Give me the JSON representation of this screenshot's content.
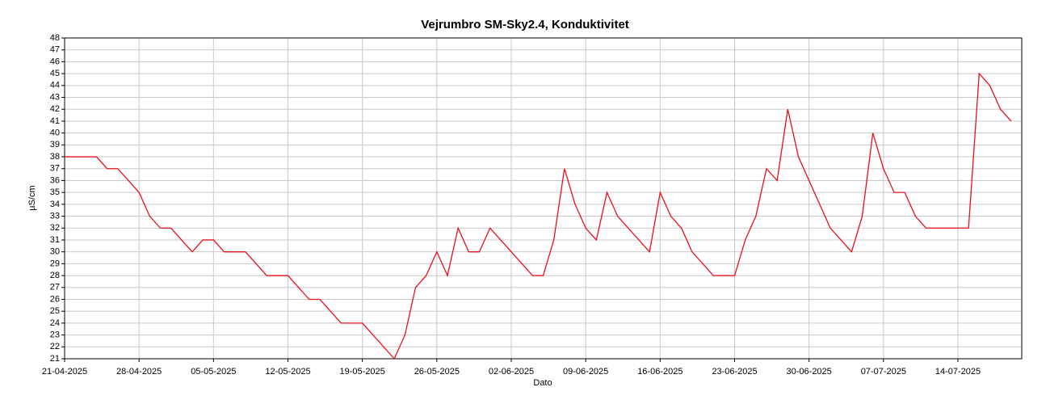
{
  "chart_data": {
    "type": "line",
    "title": "Vejrumbro SM-Sky2.4, Konduktivitet",
    "xlabel": "Dato",
    "ylabel": "µS/cm",
    "color": "#e8101a",
    "grid": true,
    "x": [
      "2025-04-21",
      "2025-04-22",
      "2025-04-23",
      "2025-04-24",
      "2025-04-25",
      "2025-04-26",
      "2025-04-27",
      "2025-04-28",
      "2025-04-29",
      "2025-04-30",
      "2025-05-01",
      "2025-05-02",
      "2025-05-03",
      "2025-05-04",
      "2025-05-05",
      "2025-05-06",
      "2025-05-07",
      "2025-05-08",
      "2025-05-09",
      "2025-05-10",
      "2025-05-11",
      "2025-05-12",
      "2025-05-13",
      "2025-05-14",
      "2025-05-15",
      "2025-05-16",
      "2025-05-17",
      "2025-05-18",
      "2025-05-19",
      "2025-05-20",
      "2025-05-21",
      "2025-05-22",
      "2025-05-23",
      "2025-05-24",
      "2025-05-25",
      "2025-05-26",
      "2025-05-27",
      "2025-05-28",
      "2025-05-29",
      "2025-05-30",
      "2025-05-31",
      "2025-06-01",
      "2025-06-02",
      "2025-06-03",
      "2025-06-04",
      "2025-06-05",
      "2025-06-06",
      "2025-06-07",
      "2025-06-08",
      "2025-06-09",
      "2025-06-10",
      "2025-06-11",
      "2025-06-12",
      "2025-06-13",
      "2025-06-14",
      "2025-06-15",
      "2025-06-16",
      "2025-06-17",
      "2025-06-18",
      "2025-06-19",
      "2025-06-20",
      "2025-06-21",
      "2025-06-22",
      "2025-06-23",
      "2025-06-24",
      "2025-06-25",
      "2025-06-26",
      "2025-06-27",
      "2025-06-28",
      "2025-06-29",
      "2025-06-30",
      "2025-07-01",
      "2025-07-02",
      "2025-07-03",
      "2025-07-04",
      "2025-07-05",
      "2025-07-06",
      "2025-07-07",
      "2025-07-08",
      "2025-07-09",
      "2025-07-10",
      "2025-07-11",
      "2025-07-12",
      "2025-07-13",
      "2025-07-14",
      "2025-07-15",
      "2025-07-16",
      "2025-07-17",
      "2025-07-18",
      "2025-07-19"
    ],
    "values": [
      38,
      38,
      38,
      38,
      37,
      37,
      36,
      35,
      33,
      32,
      32,
      31,
      30,
      31,
      31,
      30,
      30,
      30,
      29,
      28,
      28,
      28,
      27,
      26,
      26,
      25,
      24,
      24,
      24,
      23,
      22,
      21,
      23,
      27,
      28,
      30,
      28,
      32,
      30,
      30,
      32,
      31,
      30,
      29,
      28,
      28,
      31,
      37,
      34,
      32,
      31,
      35,
      33,
      32,
      31,
      30,
      35,
      33,
      32,
      30,
      29,
      28,
      28,
      28,
      31,
      33,
      37,
      36,
      42,
      38,
      36,
      34,
      32,
      31,
      30,
      33,
      40,
      37,
      35,
      35,
      33,
      32,
      32,
      32,
      32,
      32,
      45,
      44,
      42,
      41
    ],
    "xlim": [
      "2025-04-21",
      "2025-07-20"
    ],
    "xticks": [
      {
        "value": "2025-04-21",
        "label": "21-04-2025"
      },
      {
        "value": "2025-04-28",
        "label": "28-04-2025"
      },
      {
        "value": "2025-05-05",
        "label": "05-05-2025"
      },
      {
        "value": "2025-05-12",
        "label": "12-05-2025"
      },
      {
        "value": "2025-05-19",
        "label": "19-05-2025"
      },
      {
        "value": "2025-05-26",
        "label": "26-05-2025"
      },
      {
        "value": "2025-06-02",
        "label": "02-06-2025"
      },
      {
        "value": "2025-06-09",
        "label": "09-06-2025"
      },
      {
        "value": "2025-06-16",
        "label": "16-06-2025"
      },
      {
        "value": "2025-06-23",
        "label": "23-06-2025"
      },
      {
        "value": "2025-06-30",
        "label": "30-06-2025"
      },
      {
        "value": "2025-07-07",
        "label": "07-07-2025"
      },
      {
        "value": "2025-07-14",
        "label": "14-07-2025"
      }
    ],
    "ylim": [
      21,
      48
    ],
    "yticks": [
      21,
      22,
      23,
      24,
      25,
      26,
      27,
      28,
      29,
      30,
      31,
      32,
      33,
      34,
      35,
      36,
      37,
      38,
      39,
      40,
      41,
      42,
      43,
      44,
      45,
      46,
      47,
      48
    ]
  }
}
